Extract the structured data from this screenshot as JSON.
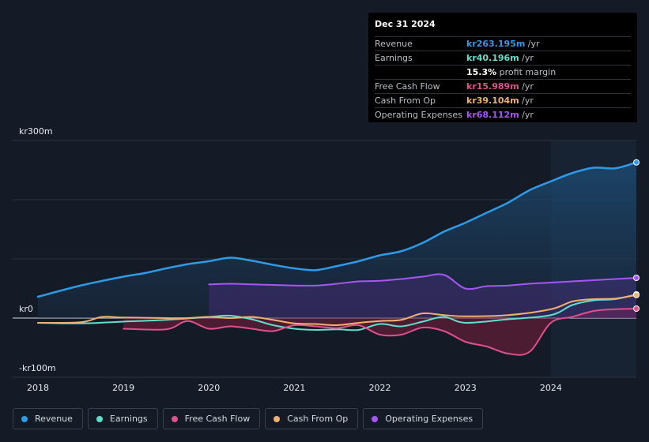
{
  "tooltip": {
    "date": "Dec 31 2024",
    "rows": [
      {
        "label": "Revenue",
        "value": "kr263.195m",
        "unit": " /yr",
        "color": "#2d9be8"
      },
      {
        "label": "Earnings",
        "value": "kr40.196m",
        "unit": " /yr",
        "color": "#5fe0cc"
      },
      {
        "label": "",
        "value": "15.3%",
        "unit": " profit margin",
        "color": "#ffffff"
      },
      {
        "label": "Free Cash Flow",
        "value": "kr15.989m",
        "unit": " /yr",
        "color": "#e0508a"
      },
      {
        "label": "Cash From Op",
        "value": "kr39.104m",
        "unit": " /yr",
        "color": "#f0b070"
      },
      {
        "label": "Operating Expenses",
        "value": "kr68.112m",
        "unit": " /yr",
        "color": "#a855f7"
      }
    ]
  },
  "legend": [
    {
      "label": "Revenue",
      "color": "#2d9be8"
    },
    {
      "label": "Earnings",
      "color": "#5fe0cc"
    },
    {
      "label": "Free Cash Flow",
      "color": "#e0508a"
    },
    {
      "label": "Cash From Op",
      "color": "#f0b070"
    },
    {
      "label": "Operating Expenses",
      "color": "#a855f7"
    }
  ],
  "chart_data": {
    "type": "area",
    "title": "",
    "xlabel": "",
    "ylabel": "",
    "y_tick_labels": [
      "kr300m",
      "kr0",
      "-kr100m"
    ],
    "ylim": [
      -100,
      300
    ],
    "xlim": [
      2018.0,
      2025.0
    ],
    "x_tick_labels": [
      "2018",
      "2019",
      "2020",
      "2021",
      "2022",
      "2023",
      "2024"
    ],
    "x_ticks": [
      2018,
      2019,
      2020,
      2021,
      2022,
      2023,
      2024
    ],
    "highlight_start": 2024.0,
    "series": [
      {
        "name": "Revenue",
        "color": "#2d9be8",
        "fill": true,
        "x": [
          2018.0,
          2018.5,
          2019.0,
          2019.25,
          2019.5,
          2019.75,
          2020.0,
          2020.25,
          2020.5,
          2020.75,
          2021.0,
          2021.25,
          2021.5,
          2021.75,
          2022.0,
          2022.25,
          2022.5,
          2022.75,
          2023.0,
          2023.25,
          2023.5,
          2023.75,
          2024.0,
          2024.25,
          2024.5,
          2024.75,
          2025.0
        ],
        "values": [
          36,
          55,
          70,
          76,
          84,
          91,
          96,
          102,
          97,
          90,
          84,
          81,
          88,
          96,
          106,
          113,
          127,
          146,
          161,
          178,
          195,
          216,
          231,
          245,
          254,
          253,
          263
        ]
      },
      {
        "name": "Earnings",
        "color": "#5fe0cc",
        "fill": false,
        "x": [
          2018.0,
          2018.5,
          2019.0,
          2019.5,
          2020.0,
          2020.25,
          2020.5,
          2020.75,
          2021.0,
          2021.25,
          2021.5,
          2021.75,
          2022.0,
          2022.25,
          2022.5,
          2022.75,
          2023.0,
          2023.5,
          2024.0,
          2024.25,
          2024.5,
          2024.75,
          2025.0
        ],
        "values": [
          -8,
          -9,
          -6,
          -3,
          2,
          4,
          -2,
          -12,
          -18,
          -20,
          -19,
          -20,
          -10,
          -14,
          -6,
          2,
          -8,
          -2,
          5,
          22,
          30,
          32,
          40
        ]
      },
      {
        "name": "Free Cash Flow",
        "color": "#e0508a",
        "fill": true,
        "x": [
          2019.0,
          2019.5,
          2019.75,
          2020.0,
          2020.25,
          2020.5,
          2020.75,
          2021.0,
          2021.25,
          2021.5,
          2021.75,
          2022.0,
          2022.25,
          2022.5,
          2022.75,
          2023.0,
          2023.25,
          2023.5,
          2023.75,
          2024.0,
          2024.25,
          2024.5,
          2024.75,
          2025.0
        ],
        "values": [
          -18,
          -19,
          -5,
          -18,
          -14,
          -18,
          -22,
          -12,
          -14,
          -17,
          -12,
          -28,
          -28,
          -16,
          -22,
          -40,
          -48,
          -60,
          -57,
          -8,
          2,
          12,
          15,
          16
        ]
      },
      {
        "name": "Cash From Op",
        "color": "#f0b070",
        "fill": false,
        "x": [
          2018.0,
          2018.5,
          2018.75,
          2019.0,
          2019.5,
          2019.75,
          2020.0,
          2020.25,
          2020.5,
          2020.75,
          2021.0,
          2021.25,
          2021.5,
          2021.75,
          2022.0,
          2022.25,
          2022.5,
          2022.75,
          2023.0,
          2023.5,
          2024.0,
          2024.25,
          2024.5,
          2024.75,
          2025.0
        ],
        "values": [
          -8,
          -7,
          2,
          1,
          0,
          0,
          2,
          0,
          2,
          -3,
          -9,
          -10,
          -12,
          -8,
          -5,
          -3,
          8,
          5,
          3,
          5,
          15,
          28,
          32,
          33,
          39
        ]
      },
      {
        "name": "Operating Expenses",
        "color": "#a855f7",
        "fill": true,
        "x": [
          2020.0,
          2020.25,
          2020.5,
          2020.75,
          2021.0,
          2021.25,
          2021.5,
          2021.75,
          2022.0,
          2022.25,
          2022.5,
          2022.75,
          2023.0,
          2023.25,
          2023.5,
          2023.75,
          2024.0,
          2024.25,
          2024.5,
          2024.75,
          2025.0
        ],
        "values": [
          57,
          58,
          57,
          56,
          55,
          55,
          58,
          62,
          63,
          66,
          70,
          73,
          50,
          54,
          55,
          58,
          60,
          62,
          64,
          66,
          68
        ]
      }
    ]
  }
}
